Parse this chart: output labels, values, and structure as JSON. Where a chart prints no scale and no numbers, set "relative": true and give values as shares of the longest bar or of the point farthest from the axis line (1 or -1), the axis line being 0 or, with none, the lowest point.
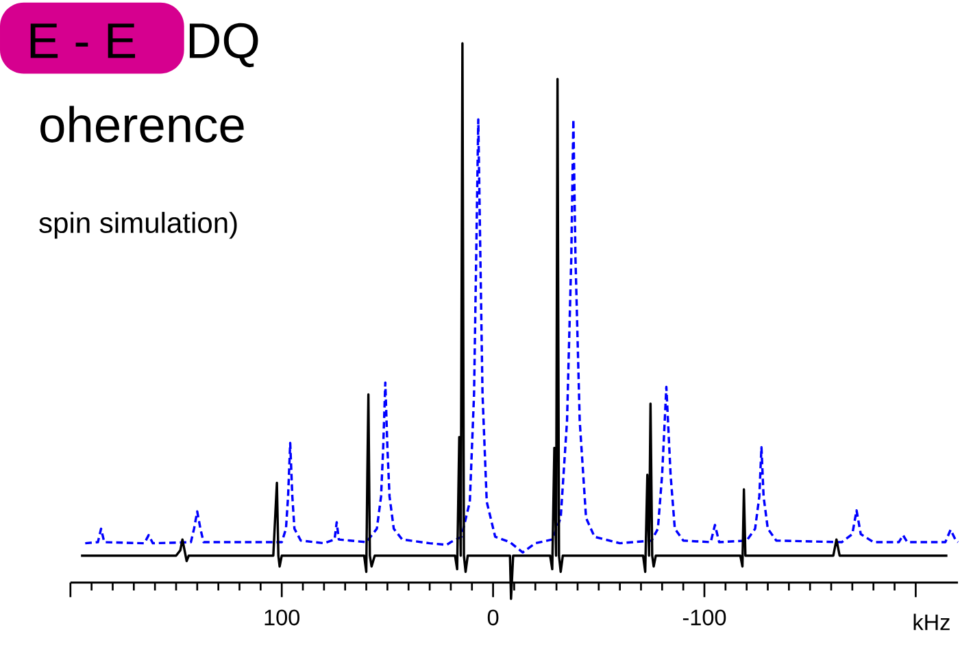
{
  "chart_data": {
    "type": "line",
    "relative": true,
    "xlabel": "kHz",
    "annotations": [
      "E - E",
      "DQ",
      "oherence",
      "spin simulation)"
    ],
    "xlim": [
      200,
      -220
    ],
    "xticks": [
      {
        "value": 200,
        "label": null
      },
      100,
      0,
      -100,
      {
        "value": -200,
        "label": null
      }
    ],
    "marker": "none",
    "series": [
      {
        "color": "#0000ff",
        "line_style": "dashed",
        "x": [
          193,
          187,
          185.5,
          184,
          165,
          163,
          161,
          143,
          141.5,
          140,
          138.5,
          137,
          100,
          98,
          97,
          96,
          95,
          94,
          91,
          80,
          75,
          74,
          73,
          60,
          55,
          53,
          52,
          51,
          50,
          49,
          47,
          43,
          30,
          22,
          20,
          15,
          11,
          9,
          8,
          7,
          6,
          5,
          3,
          -1,
          -8,
          -14,
          -20,
          -28,
          -32,
          -35,
          -37,
          -38,
          -39,
          -41,
          -44,
          -48,
          -60,
          -75,
          -78,
          -80,
          -82,
          -84,
          -86,
          -90,
          -103,
          -105,
          -107,
          -120,
          -124,
          -126,
          -127,
          -128,
          -130,
          -134,
          -165,
          -170,
          -172,
          -174,
          -180,
          -192,
          -194,
          -196,
          -214,
          -216.5,
          -219,
          -220
        ],
        "values": [
          0.073,
          0.075,
          0.1,
          0.075,
          0.073,
          0.088,
          0.073,
          0.075,
          0.1,
          0.132,
          0.1,
          0.075,
          0.075,
          0.1,
          0.16,
          0.259,
          0.16,
          0.1,
          0.078,
          0.073,
          0.08,
          0.112,
          0.08,
          0.075,
          0.1,
          0.16,
          0.25,
          0.371,
          0.25,
          0.16,
          0.1,
          0.08,
          0.073,
          0.07,
          0.075,
          0.085,
          0.15,
          0.35,
          0.6,
          0.859,
          0.6,
          0.35,
          0.15,
          0.085,
          0.075,
          0.056,
          0.073,
          0.08,
          0.12,
          0.3,
          0.6,
          0.859,
          0.6,
          0.3,
          0.12,
          0.085,
          0.073,
          0.078,
          0.1,
          0.2,
          0.363,
          0.2,
          0.1,
          0.078,
          0.075,
          0.107,
          0.075,
          0.078,
          0.1,
          0.16,
          0.251,
          0.16,
          0.1,
          0.078,
          0.075,
          0.09,
          0.134,
          0.09,
          0.075,
          0.075,
          0.088,
          0.075,
          0.075,
          0.098,
          0.078,
          0.075
        ]
      },
      {
        "color": "#000000",
        "line_style": "solid",
        "x": [
          195,
          150,
          148,
          147,
          146,
          145,
          144,
          104,
          103,
          102.3,
          101.6,
          101,
          100,
          61,
          60,
          59.5,
          59,
          58.3,
          57.5,
          56,
          18,
          17,
          16,
          15.3,
          14.5,
          13.8,
          13,
          12,
          -8,
          -8.5,
          -9.5,
          -27,
          -28,
          -29,
          -29.8,
          -30.5,
          -31.2,
          -32,
          -33,
          -71,
          -72,
          -73,
          -73.8,
          -74.5,
          -75.3,
          -76,
          -77,
          -117,
          -118,
          -118.7,
          -119.4,
          -120,
          -161,
          -162.5,
          -164,
          -215
        ],
        "values": [
          0.05,
          0.05,
          0.06,
          0.08,
          0.06,
          0.04,
          0.05,
          0.05,
          0.13,
          0.185,
          0.05,
          0.03,
          0.05,
          0.05,
          0.02,
          0.2,
          0.349,
          0.05,
          0.03,
          0.05,
          0.05,
          0.025,
          0.27,
          0.05,
          1.0,
          0.05,
          0.02,
          0.05,
          0.05,
          -0.03,
          0.05,
          0.05,
          0.025,
          0.25,
          0.05,
          0.934,
          0.05,
          0.02,
          0.05,
          0.05,
          0.02,
          0.2,
          0.05,
          0.332,
          0.05,
          0.03,
          0.05,
          0.05,
          0.03,
          0.173,
          0.05,
          0.05,
          0.05,
          0.08,
          0.05,
          0.05
        ]
      }
    ]
  }
}
